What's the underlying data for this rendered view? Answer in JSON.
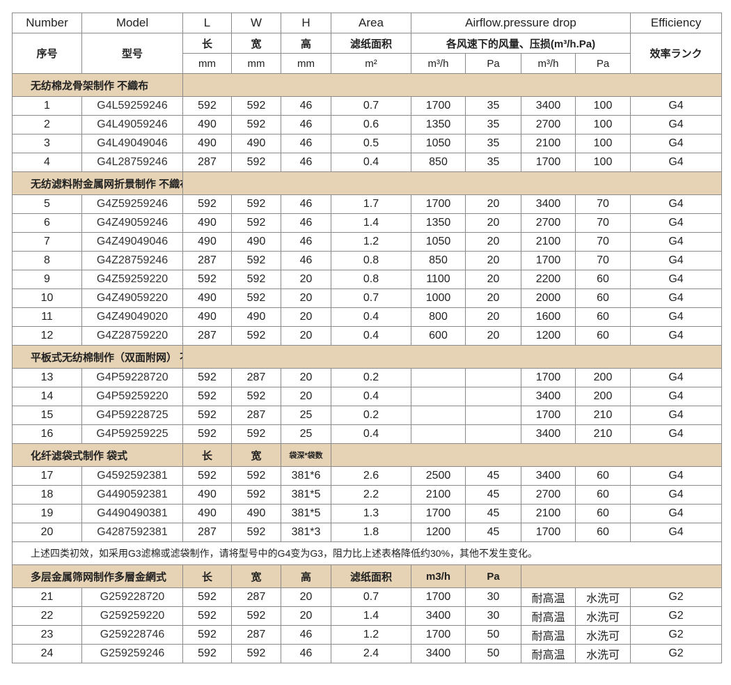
{
  "header": {
    "en": [
      "Number",
      "Model",
      "L",
      "W",
      "H",
      "Area",
      "Airflow.pressure drop",
      "Efficiency"
    ],
    "cn": {
      "number": "序号",
      "model": "型号",
      "l": "长",
      "w": "宽",
      "h": "高",
      "area": "滤纸面积",
      "airflow": "各风速下的风量、压损(m³/h.Pa)",
      "efficiency": "效率ランク"
    },
    "units": [
      "mm",
      "mm",
      "mm",
      "m²",
      "m³/h",
      "Pa",
      "m³/h",
      "Pa"
    ]
  },
  "sections": [
    {
      "label": "无纺棉龙骨架制作 不織布",
      "extra": [],
      "rows": [
        [
          "1",
          "G4L59259246",
          "592",
          "592",
          "46",
          "0.7",
          "1700",
          "35",
          "3400",
          "100",
          "G4"
        ],
        [
          "2",
          "G4L49059246",
          "490",
          "592",
          "46",
          "0.6",
          "1350",
          "35",
          "2700",
          "100",
          "G4"
        ],
        [
          "3",
          "G4L49049046",
          "490",
          "490",
          "46",
          "0.5",
          "1050",
          "35",
          "2100",
          "100",
          "G4"
        ],
        [
          "4",
          "G4L28759246",
          "287",
          "592",
          "46",
          "0.4",
          "850",
          "35",
          "1700",
          "100",
          "G4"
        ]
      ]
    },
    {
      "label": "无纺滤料附金属网折景制作  不織布金網付折型",
      "extra": [],
      "rows": [
        [
          "5",
          "G4Z59259246",
          "592",
          "592",
          "46",
          "1.7",
          "1700",
          "20",
          "3400",
          "70",
          "G4"
        ],
        [
          "6",
          "G4Z49059246",
          "490",
          "592",
          "46",
          "1.4",
          "1350",
          "20",
          "2700",
          "70",
          "G4"
        ],
        [
          "7",
          "G4Z49049046",
          "490",
          "490",
          "46",
          "1.2",
          "1050",
          "20",
          "2100",
          "70",
          "G4"
        ],
        [
          "8",
          "G4Z28759246",
          "287",
          "592",
          "46",
          "0.8",
          "850",
          "20",
          "1700",
          "70",
          "G4"
        ],
        [
          "9",
          "G4Z59259220",
          "592",
          "592",
          "20",
          "0.8",
          "1100",
          "20",
          "2200",
          "60",
          "G4"
        ],
        [
          "10",
          "G4Z49059220",
          "490",
          "592",
          "20",
          "0.7",
          "1000",
          "20",
          "2000",
          "60",
          "G4"
        ],
        [
          "11",
          "G4Z49049020",
          "490",
          "490",
          "20",
          "0.4",
          "800",
          "20",
          "1600",
          "60",
          "G4"
        ],
        [
          "12",
          "G4Z28759220",
          "287",
          "592",
          "20",
          "0.4",
          "600",
          "20",
          "1200",
          "60",
          "G4"
        ]
      ]
    },
    {
      "label": "平板式无纺棉制作（双面附网） 不織布フラット型（両面金網付）",
      "extra": [],
      "rows": [
        [
          "13",
          "G4P59228720",
          "592",
          "287",
          "20",
          "0.2",
          "",
          "",
          "1700",
          "200",
          "G4"
        ],
        [
          "14",
          "G4P59259220",
          "592",
          "592",
          "20",
          "0.4",
          "",
          "",
          "3400",
          "200",
          "G4"
        ],
        [
          "15",
          "G4P59228725",
          "592",
          "287",
          "25",
          "0.2",
          "",
          "",
          "1700",
          "210",
          "G4"
        ],
        [
          "16",
          "G4P59259225",
          "592",
          "592",
          "25",
          "0.4",
          "",
          "",
          "3400",
          "210",
          "G4"
        ]
      ]
    },
    {
      "label": "化纤滤袋式制作 袋式",
      "extra": [
        "长",
        "宽",
        "袋深*袋数"
      ],
      "rows": [
        [
          "17",
          "G4592592381",
          "592",
          "592",
          "381*6",
          "2.6",
          "2500",
          "45",
          "3400",
          "60",
          "G4"
        ],
        [
          "18",
          "G4490592381",
          "490",
          "592",
          "381*5",
          "2.2",
          "2100",
          "45",
          "2700",
          "60",
          "G4"
        ],
        [
          "19",
          "G4490490381",
          "490",
          "490",
          "381*5",
          "1.3",
          "1700",
          "45",
          "2100",
          "60",
          "G4"
        ],
        [
          "20",
          "G4287592381",
          "287",
          "592",
          "381*3",
          "1.8",
          "1200",
          "45",
          "1700",
          "60",
          "G4"
        ]
      ],
      "note": "上述四类初效，如采用G3滤棉或滤袋制作，请将型号中的G4变为G3，阻力比上述表格降低约30%，其他不发生变化。"
    },
    {
      "label": "多层金属筛网制作多層金網式",
      "extra": [
        "长",
        "宽",
        "高",
        "滤纸面积",
        "m3/h",
        "Pa"
      ],
      "rows": [
        [
          "21",
          "G259228720",
          "592",
          "287",
          "20",
          "0.7",
          "1700",
          "30",
          "耐高温",
          "水洗可",
          "G2"
        ],
        [
          "22",
          "G259259220",
          "592",
          "592",
          "20",
          "1.4",
          "3400",
          "30",
          "耐高温",
          "水洗可",
          "G2"
        ],
        [
          "23",
          "G259228746",
          "592",
          "287",
          "46",
          "1.2",
          "1700",
          "50",
          "耐高温",
          "水洗可",
          "G2"
        ],
        [
          "24",
          "G259259246",
          "592",
          "592",
          "46",
          "2.4",
          "3400",
          "50",
          "耐高温",
          "水洗可",
          "G2"
        ]
      ]
    }
  ],
  "colors": {
    "section_bg": "#e6d2b4",
    "border": "#8a8a8a"
  }
}
